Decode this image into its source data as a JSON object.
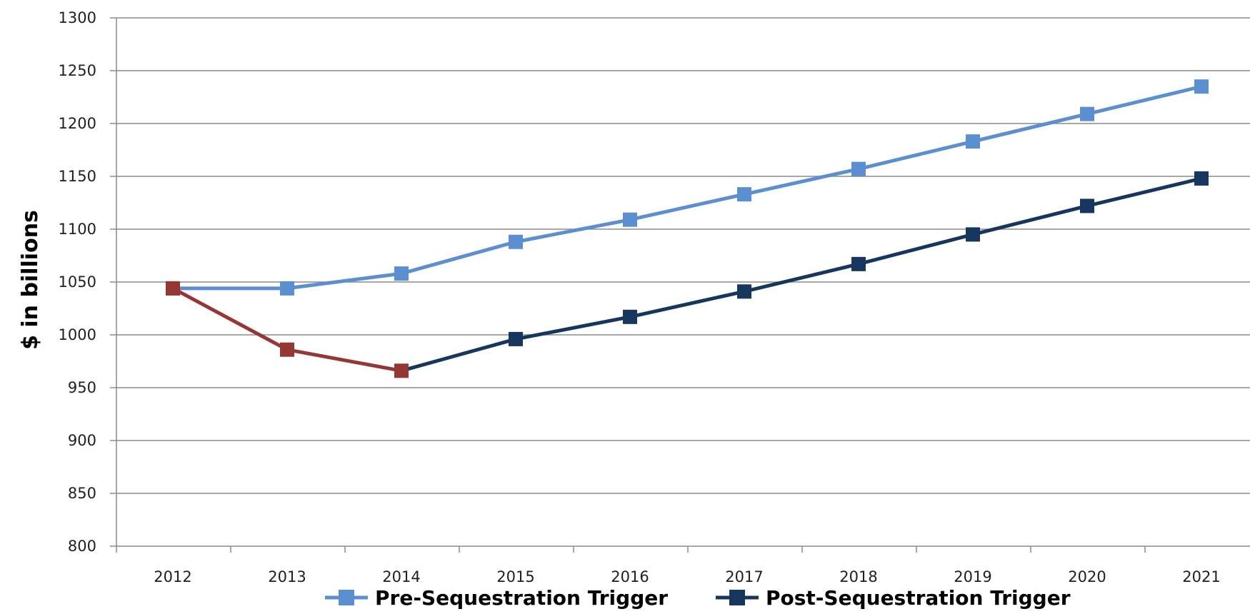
{
  "chart_data": {
    "type": "line",
    "title": "",
    "xlabel": "",
    "ylabel": "$ in billions",
    "ylim": [
      800,
      1300
    ],
    "ytick_step": 50,
    "grid": "horizontal",
    "legend_position": "bottom",
    "categories": [
      "2012",
      "2013",
      "2014",
      "2015",
      "2016",
      "2017",
      "2018",
      "2019",
      "2020",
      "2021"
    ],
    "series": [
      {
        "name": "Pre-Sequestration Trigger",
        "color": "#5b8fd0",
        "values": [
          1044,
          1044,
          1058,
          1088,
          1109,
          1133,
          1157,
          1183,
          1209,
          1235
        ]
      },
      {
        "name": "Post-Sequestration Trigger",
        "color": "#17365d",
        "values": [
          1044,
          986,
          966,
          996,
          1017,
          1041,
          1067,
          1095,
          1122,
          1148
        ]
      }
    ],
    "highlight": {
      "color": "#953735",
      "points": [
        "2012",
        "2013",
        "2014"
      ]
    }
  }
}
